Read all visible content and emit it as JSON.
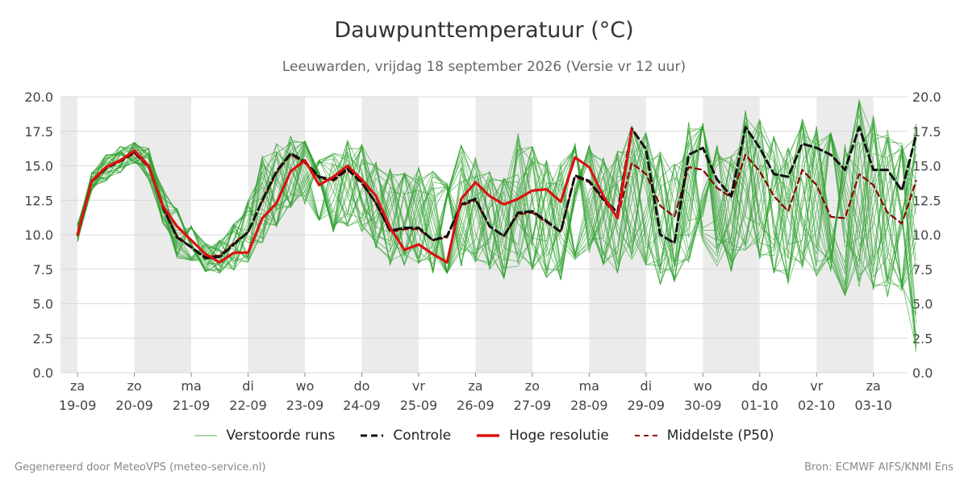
{
  "title": "Dauwpunttemperatuur (°C)",
  "subtitle": "Leeuwarden, vrijdag 18 september 2026 (Versie vr 12 uur)",
  "footer": {
    "left": "Gegenereerd door MeteoVPS (meteo-service.nl)",
    "right": "Bron: ECMWF AIFS/KNMI Ens"
  },
  "legend": {
    "ensemble": "Verstoorde runs",
    "control": "Controle",
    "hires": "Hoge resolutie",
    "median": "Middelste (P50)"
  },
  "colors": {
    "ensemble": "#2ca02c",
    "control": "#111111",
    "hires": "#dd1111",
    "median": "#8b0000",
    "weekend_band": "#ebebeb",
    "grid": "#d8d8d8"
  },
  "chart_data": {
    "type": "line",
    "title": "Dauwpunttemperatuur (°C)",
    "xlabel": "",
    "ylabel": "",
    "ylim": [
      0,
      20
    ],
    "yticks": [
      "0.0",
      "2.5",
      "5.0",
      "7.5",
      "10.0",
      "12.5",
      "15.0",
      "17.5",
      "20.0"
    ],
    "x_unit": "days from Fri 18-09 00:00",
    "xlim": [
      1.2,
      16.1
    ],
    "day_ticks": [
      {
        "day": "za",
        "date": "19-09"
      },
      {
        "day": "zo",
        "date": "20-09"
      },
      {
        "day": "ma",
        "date": "21-09"
      },
      {
        "day": "di",
        "date": "22-09"
      },
      {
        "day": "wo",
        "date": "23-09"
      },
      {
        "day": "do",
        "date": "24-09"
      },
      {
        "day": "vr",
        "date": "25-09"
      },
      {
        "day": "za",
        "date": "26-09"
      },
      {
        "day": "zo",
        "date": "27-09"
      },
      {
        "day": "ma",
        "date": "28-09"
      },
      {
        "day": "di",
        "date": "29-09"
      },
      {
        "day": "wo",
        "date": "30-09"
      },
      {
        "day": "do",
        "date": "01-10"
      },
      {
        "day": "vr",
        "date": "02-10"
      },
      {
        "day": "za",
        "date": "03-10"
      }
    ],
    "shaded_days": [
      2,
      4,
      6,
      8,
      10,
      12,
      14,
      16
    ],
    "series": [
      {
        "name": "Hoge resolutie",
        "step": 0.25,
        "x0": 1.5,
        "values": [
          10.0,
          13.9,
          14.9,
          15.4,
          16.1,
          15.0,
          12.1,
          10.6,
          9.6,
          8.6,
          8.0,
          8.7,
          8.7,
          11.2,
          12.3,
          14.6,
          15.4,
          13.6,
          14.2,
          15.0,
          14.0,
          12.8,
          10.5,
          8.9,
          9.3,
          8.6,
          8.0,
          12.6,
          13.8,
          12.8,
          12.2,
          12.6,
          13.2,
          13.3,
          12.4,
          15.6,
          14.9,
          12.8,
          11.2,
          17.6
        ]
      },
      {
        "name": "Controle",
        "step": 0.25,
        "x0": 1.5,
        "values": [
          10.0,
          13.9,
          14.8,
          15.4,
          16.0,
          15.0,
          12.0,
          9.8,
          9.1,
          8.3,
          8.4,
          9.3,
          10.2,
          12.5,
          14.6,
          15.9,
          15.3,
          14.2,
          14.0,
          14.8,
          13.8,
          12.3,
          10.3,
          10.5,
          10.5,
          9.6,
          9.9,
          12.2,
          12.6,
          10.6,
          9.9,
          11.6,
          11.7,
          11.0,
          10.2,
          14.3,
          13.9,
          12.6,
          11.6,
          17.7,
          16.2,
          10.0,
          9.4,
          15.8,
          16.3,
          14.0,
          12.8,
          17.8,
          16.3,
          14.4,
          14.2,
          16.6,
          16.3,
          15.8,
          14.7,
          17.8,
          14.7,
          14.7,
          13.2,
          17.2
        ]
      },
      {
        "name": "Middelste (P50)",
        "step": 0.25,
        "x0": 1.5,
        "values": [
          10.1,
          13.8,
          14.8,
          15.3,
          15.9,
          14.9,
          12.0,
          9.9,
          9.1,
          8.4,
          8.5,
          9.4,
          10.2,
          12.4,
          14.5,
          15.8,
          15.2,
          14.1,
          13.9,
          14.7,
          13.7,
          12.3,
          10.2,
          10.4,
          10.4,
          9.6,
          9.8,
          12.1,
          12.5,
          10.6,
          9.9,
          11.5,
          11.6,
          10.9,
          10.2,
          14.2,
          13.8,
          12.5,
          11.3,
          15.2,
          14.4,
          12.1,
          11.3,
          14.9,
          14.7,
          13.4,
          12.7,
          15.8,
          14.6,
          12.8,
          11.7,
          14.7,
          13.6,
          11.3,
          11.2,
          14.4,
          13.6,
          11.6,
          10.8,
          13.9
        ]
      }
    ],
    "ensemble_band": {
      "name": "Verstoorde runs",
      "step": 0.25,
      "x0": 1.5,
      "low": [
        9.5,
        13.2,
        13.9,
        14.5,
        15.2,
        14.0,
        10.8,
        8.2,
        8.0,
        7.3,
        7.2,
        7.4,
        8.0,
        9.4,
        10.5,
        12.0,
        12.2,
        11.0,
        10.2,
        10.6,
        10.2,
        9.0,
        7.8,
        7.8,
        7.9,
        7.2,
        7.2,
        7.7,
        8.0,
        7.4,
        6.8,
        7.6,
        7.3,
        6.9,
        6.7,
        8.0,
        8.5,
        7.8,
        7.2,
        8.2,
        7.8,
        6.4,
        6.5,
        8.0,
        8.6,
        7.6,
        7.3,
        8.9,
        8.2,
        7.2,
        6.4,
        7.5,
        7.0,
        5.8,
        5.6,
        6.2,
        6.0,
        5.4,
        5.5,
        1.5
      ],
      "high": [
        10.8,
        14.5,
        15.8,
        16.4,
        16.7,
        16.3,
        13.4,
        11.9,
        10.7,
        9.4,
        9.6,
        10.8,
        12.5,
        15.7,
        16.6,
        17.2,
        16.8,
        16.1,
        15.9,
        16.9,
        16.6,
        15.3,
        14.8,
        14.6,
        14.9,
        14.6,
        15.2,
        16.5,
        15.6,
        14.6,
        14.1,
        17.5,
        16.4,
        15.4,
        15.3,
        17.2,
        16.5,
        15.6,
        16.1,
        17.9,
        17.4,
        16.1,
        15.2,
        18.2,
        18.1,
        16.5,
        15.7,
        19.0,
        18.4,
        17.2,
        16.3,
        18.4,
        17.9,
        17.4,
        16.6,
        19.8,
        18.7,
        17.6,
        17.0,
        18.3
      ]
    }
  }
}
